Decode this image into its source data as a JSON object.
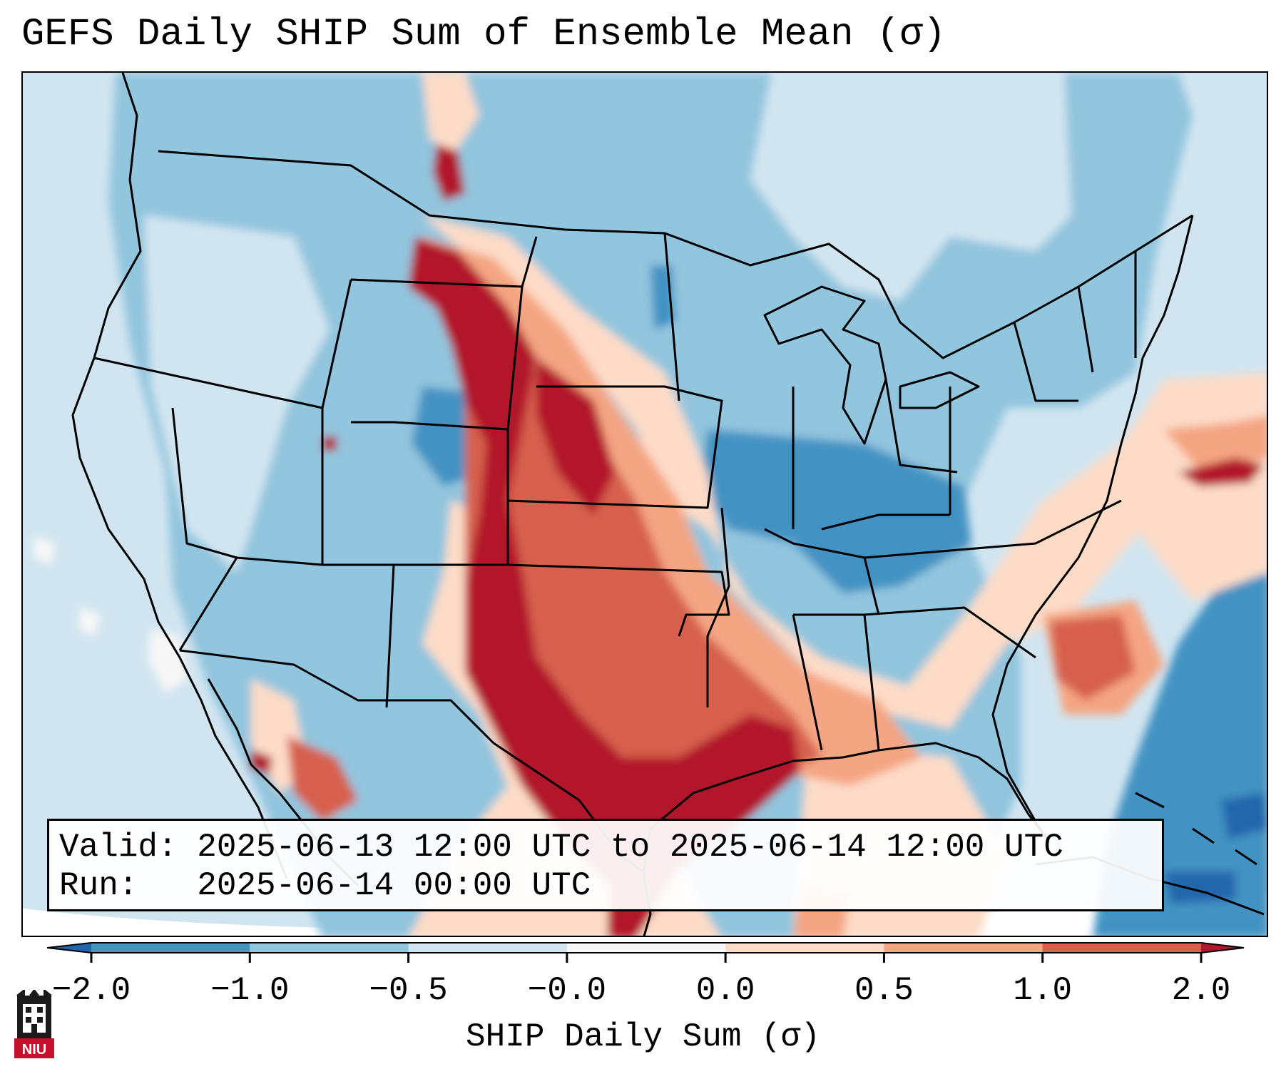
{
  "title": "GEFS Daily SHIP Sum of Ensemble Mean (σ)",
  "info": {
    "valid_line": "Valid: 2025-06-13 12:00 UTC to 2025-06-14 12:00 UTC",
    "run_line": "Run:   2025-06-14 00:00 UTC"
  },
  "colorbar": {
    "label": "SHIP Daily Sum (σ)",
    "ticks": [
      "−2.0",
      "−1.0",
      "−0.5",
      "−0.0",
      "0.0",
      "0.5",
      "1.0",
      "2.0"
    ],
    "bins": [
      {
        "from": -2.0,
        "to": -1.0,
        "color": "#4393c3"
      },
      {
        "from": -1.0,
        "to": -0.5,
        "color": "#92c5de"
      },
      {
        "from": -0.5,
        "to": -0.0,
        "color": "#d1e5f0"
      },
      {
        "from": -0.0,
        "to": 0.0,
        "color": "#f7f7f7"
      },
      {
        "from": 0.0,
        "to": 0.5,
        "color": "#fddbc7"
      },
      {
        "from": 0.5,
        "to": 1.0,
        "color": "#f4a582"
      },
      {
        "from": 1.0,
        "to": 2.0,
        "color": "#d6604d"
      }
    ],
    "under_color": "#2166ac",
    "over_color": "#b2182b"
  },
  "map": {
    "background_color": "#d1e5f0",
    "outside_color": "#ffffff",
    "anomaly_regions": [
      {
        "name": "southern plains and texas",
        "level": "above 2.0",
        "color": "#b2182b"
      },
      {
        "name": "front range corridor",
        "level": "above 2.0",
        "color": "#b2182b"
      },
      {
        "name": "gulf coast",
        "level": "1.0 to 2.0",
        "color": "#d6604d"
      },
      {
        "name": "carolinas coast",
        "level": "1.0 to 2.0",
        "color": "#d6604d"
      },
      {
        "name": "offshore atlantic",
        "level": "0.0 to 0.5",
        "color": "#fddbc7"
      },
      {
        "name": "ohio valley",
        "level": "-2.0 to -1.0",
        "color": "#4393c3"
      },
      {
        "name": "western atlantic",
        "level": "-2.0 to -1.0",
        "color": "#4393c3"
      }
    ]
  },
  "logo": {
    "text": "NIU"
  }
}
